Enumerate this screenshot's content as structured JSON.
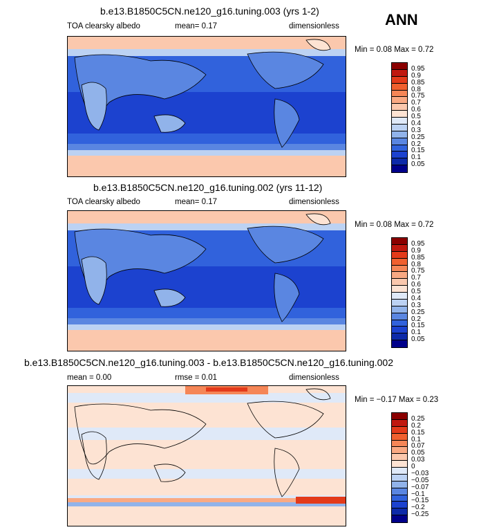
{
  "season": "ANN",
  "panels": [
    {
      "title": "b.e13.B1850C5CN.ne120_g16.tuning.003 (yrs 1-2)",
      "left": "TOA clearsky albedo",
      "mean": "mean=   0.17",
      "units": "dimensionless",
      "minmax": "Min =   0.08  Max =   0.72",
      "levels": [
        "0.95",
        "0.9",
        "0.85",
        "0.8",
        "0.75",
        "0.7",
        "0.6",
        "0.5",
        "0.4",
        "0.3",
        "0.25",
        "0.2",
        "0.15",
        "0.1",
        "0.05"
      ],
      "colors": [
        "#8b0000",
        "#c0180f",
        "#e33a1a",
        "#f0602f",
        "#f58657",
        "#f9a983",
        "#fbc8ad",
        "#fde3d3",
        "#dfe9f8",
        "#bcd2f3",
        "#91b3ea",
        "#5a86e1",
        "#3162dc",
        "#1c42cf",
        "#0d2aa9",
        "#00008a"
      ]
    },
    {
      "title": "b.e13.B1850C5CN.ne120_g16.tuning.002 (yrs 11-12)",
      "left": "TOA clearsky albedo",
      "mean": "mean=   0.17",
      "units": "dimensionless",
      "minmax": "Min =   0.08  Max =   0.72",
      "levels": [
        "0.95",
        "0.9",
        "0.85",
        "0.8",
        "0.75",
        "0.7",
        "0.6",
        "0.5",
        "0.4",
        "0.3",
        "0.25",
        "0.2",
        "0.15",
        "0.1",
        "0.05"
      ],
      "colors": [
        "#8b0000",
        "#c0180f",
        "#e33a1a",
        "#f0602f",
        "#f58657",
        "#f9a983",
        "#fbc8ad",
        "#fde3d3",
        "#dfe9f8",
        "#bcd2f3",
        "#91b3ea",
        "#5a86e1",
        "#3162dc",
        "#1c42cf",
        "#0d2aa9",
        "#00008a"
      ]
    },
    {
      "title": "b.e13.B1850C5CN.ne120_g16.tuning.003 - b.e13.B1850C5CN.ne120_g16.tuning.002",
      "left": "mean =    0.00",
      "mean": "rmse =    0.01",
      "units": "dimensionless",
      "minmax": "Min =  −0.17  Max =   0.23",
      "levels": [
        "0.25",
        "0.2",
        "0.15",
        "0.1",
        "0.07",
        "0.05",
        "0.03",
        "0",
        "−0.03",
        "−0.05",
        "−0.07",
        "−0.1",
        "−0.15",
        "−0.2",
        "−0.25"
      ],
      "colors": [
        "#8b0000",
        "#c0180f",
        "#e33a1a",
        "#f0602f",
        "#f58657",
        "#f9a983",
        "#fbc8ad",
        "#fde3d3",
        "#dfe9f8",
        "#bcd2f3",
        "#91b3ea",
        "#5a86e1",
        "#3162dc",
        "#1c42cf",
        "#0d2aa9",
        "#00008a"
      ]
    }
  ]
}
